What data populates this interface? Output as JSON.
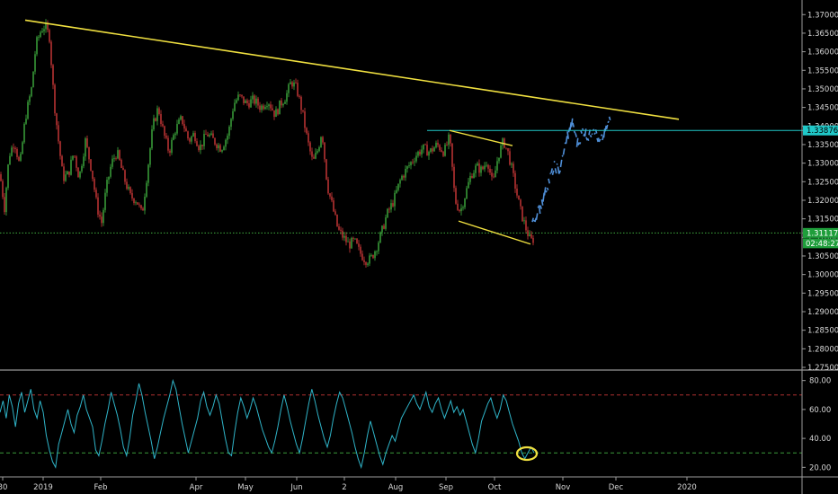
{
  "chart_data": [
    {
      "type": "candlestick",
      "title": "",
      "x_ticks": [
        "30",
        "2019",
        "Feb",
        "Apr",
        "May",
        "Jun",
        "2",
        "Aug",
        "Sep",
        "Oct",
        "Nov",
        "Dec",
        "2020"
      ],
      "y_ticks": [
        "1.37000",
        "1.36500",
        "1.36000",
        "1.35500",
        "1.35000",
        "1.34500",
        "1.34000",
        "1.33500",
        "1.33000",
        "1.32500",
        "1.32000",
        "1.31500",
        "1.31000",
        "1.30500",
        "1.30000",
        "1.29500",
        "1.29000",
        "1.28500",
        "1.28000",
        "1.27500"
      ],
      "ylim": [
        1.275,
        1.372
      ],
      "grid": false,
      "price_tags": {
        "level": "1.33876",
        "last": "1.31117",
        "countdown": "02:48:27"
      },
      "close_path": [
        [
          0,
          1.327
        ],
        [
          5,
          1.318
        ],
        [
          10,
          1.332
        ],
        [
          16,
          1.336
        ],
        [
          22,
          1.329
        ],
        [
          28,
          1.342
        ],
        [
          35,
          1.35
        ],
        [
          40,
          1.362
        ],
        [
          46,
          1.366
        ],
        [
          50,
          1.367
        ],
        [
          55,
          1.364
        ],
        [
          60,
          1.347
        ],
        [
          65,
          1.336
        ],
        [
          70,
          1.326
        ],
        [
          76,
          1.327
        ],
        [
          82,
          1.333
        ],
        [
          88,
          1.326
        ],
        [
          95,
          1.336
        ],
        [
          102,
          1.328
        ],
        [
          108,
          1.318
        ],
        [
          113,
          1.314
        ],
        [
          118,
          1.323
        ],
        [
          124,
          1.33
        ],
        [
          130,
          1.333
        ],
        [
          138,
          1.326
        ],
        [
          145,
          1.321
        ],
        [
          152,
          1.32
        ],
        [
          158,
          1.316
        ],
        [
          164,
          1.328
        ],
        [
          170,
          1.34
        ],
        [
          176,
          1.345
        ],
        [
          182,
          1.338
        ],
        [
          188,
          1.333
        ],
        [
          195,
          1.339
        ],
        [
          202,
          1.342
        ],
        [
          210,
          1.336
        ],
        [
          216,
          1.338
        ],
        [
          222,
          1.334
        ],
        [
          230,
          1.338
        ],
        [
          238,
          1.336
        ],
        [
          246,
          1.334
        ],
        [
          254,
          1.338
        ],
        [
          260,
          1.346
        ],
        [
          266,
          1.348
        ],
        [
          274,
          1.346
        ],
        [
          282,
          1.347
        ],
        [
          290,
          1.345
        ],
        [
          298,
          1.347
        ],
        [
          306,
          1.343
        ],
        [
          312,
          1.346
        ],
        [
          318,
          1.348
        ],
        [
          324,
          1.352
        ],
        [
          330,
          1.35
        ],
        [
          336,
          1.344
        ],
        [
          342,
          1.336
        ],
        [
          348,
          1.33
        ],
        [
          354,
          1.334
        ],
        [
          358,
          1.339
        ],
        [
          364,
          1.324
        ],
        [
          370,
          1.318
        ],
        [
          376,
          1.312
        ],
        [
          382,
          1.31
        ],
        [
          388,
          1.308
        ],
        [
          394,
          1.309
        ],
        [
          400,
          1.306
        ],
        [
          406,
          1.304
        ],
        [
          412,
          1.304
        ],
        [
          418,
          1.307
        ],
        [
          424,
          1.311
        ],
        [
          430,
          1.316
        ],
        [
          438,
          1.32
        ],
        [
          446,
          1.326
        ],
        [
          454,
          1.329
        ],
        [
          462,
          1.332
        ],
        [
          470,
          1.334
        ],
        [
          478,
          1.333
        ],
        [
          486,
          1.335
        ],
        [
          494,
          1.333
        ],
        [
          500,
          1.337
        ],
        [
          506,
          1.32
        ],
        [
          512,
          1.317
        ],
        [
          518,
          1.322
        ],
        [
          524,
          1.327
        ],
        [
          530,
          1.329
        ],
        [
          536,
          1.328
        ],
        [
          542,
          1.331
        ],
        [
          548,
          1.324
        ],
        [
          554,
          1.332
        ],
        [
          560,
          1.336
        ],
        [
          566,
          1.332
        ],
        [
          572,
          1.325
        ],
        [
          578,
          1.318
        ],
        [
          584,
          1.313
        ],
        [
          590,
          1.309
        ],
        [
          596,
          1.31
        ]
      ],
      "projection_path": [
        [
          592,
          1.314
        ],
        [
          600,
          1.318
        ],
        [
          608,
          1.324
        ],
        [
          616,
          1.329
        ],
        [
          622,
          1.328
        ],
        [
          630,
          1.337
        ],
        [
          636,
          1.341
        ],
        [
          642,
          1.335
        ],
        [
          648,
          1.339
        ],
        [
          654,
          1.337
        ],
        [
          660,
          1.34
        ],
        [
          666,
          1.335
        ],
        [
          672,
          1.338
        ],
        [
          678,
          1.342
        ]
      ],
      "trendlines": {
        "resistance": [
          [
            28,
            1.3685
          ],
          [
            755,
            1.3418
          ]
        ],
        "level_line": [
          [
            475,
            1.3388
          ],
          [
            932,
            1.3388
          ]
        ],
        "channel_upper": [
          [
            500,
            1.3388
          ],
          [
            570,
            1.3347
          ]
        ],
        "channel_lower": [
          [
            510,
            1.3144
          ],
          [
            590,
            1.3082
          ]
        ],
        "support_line": [
          [
            0,
            1.3112
          ],
          [
            932,
            1.3112
          ]
        ]
      }
    },
    {
      "type": "line",
      "title": "",
      "y_ticks": [
        "80.00",
        "60.00",
        "40.00",
        "20.00"
      ],
      "ylim": [
        14,
        86
      ],
      "upper_band": 70,
      "lower_band": 30,
      "values": [
        58,
        66,
        54,
        70,
        62,
        48,
        64,
        72,
        58,
        66,
        74,
        60,
        54,
        66,
        58,
        42,
        32,
        24,
        20,
        36,
        44,
        52,
        60,
        50,
        44,
        56,
        62,
        70,
        60,
        54,
        48,
        32,
        28,
        38,
        50,
        60,
        72,
        64,
        56,
        46,
        34,
        28,
        40,
        56,
        66,
        78,
        70,
        58,
        48,
        38,
        26,
        34,
        44,
        54,
        62,
        70,
        80,
        74,
        62,
        50,
        40,
        30,
        38,
        46,
        54,
        66,
        72,
        62,
        56,
        62,
        70,
        64,
        52,
        40,
        30,
        28,
        44,
        58,
        68,
        62,
        54,
        60,
        68,
        62,
        54,
        46,
        40,
        34,
        30,
        38,
        48,
        60,
        70,
        62,
        52,
        44,
        36,
        30,
        40,
        52,
        64,
        74,
        66,
        56,
        48,
        40,
        34,
        42,
        54,
        64,
        72,
        68,
        60,
        52,
        44,
        34,
        26,
        20,
        30,
        42,
        52,
        44,
        36,
        28,
        22,
        30,
        36,
        42,
        38,
        46,
        54,
        58,
        62,
        66,
        70,
        64,
        60,
        66,
        72,
        62,
        58,
        64,
        68,
        60,
        54,
        60,
        66,
        58,
        62,
        56,
        60,
        52,
        44,
        36,
        30,
        40,
        52,
        58,
        64,
        68,
        60,
        54,
        60,
        70,
        66,
        58,
        50,
        44,
        38,
        30,
        26,
        30,
        34,
        30
      ]
    }
  ]
}
